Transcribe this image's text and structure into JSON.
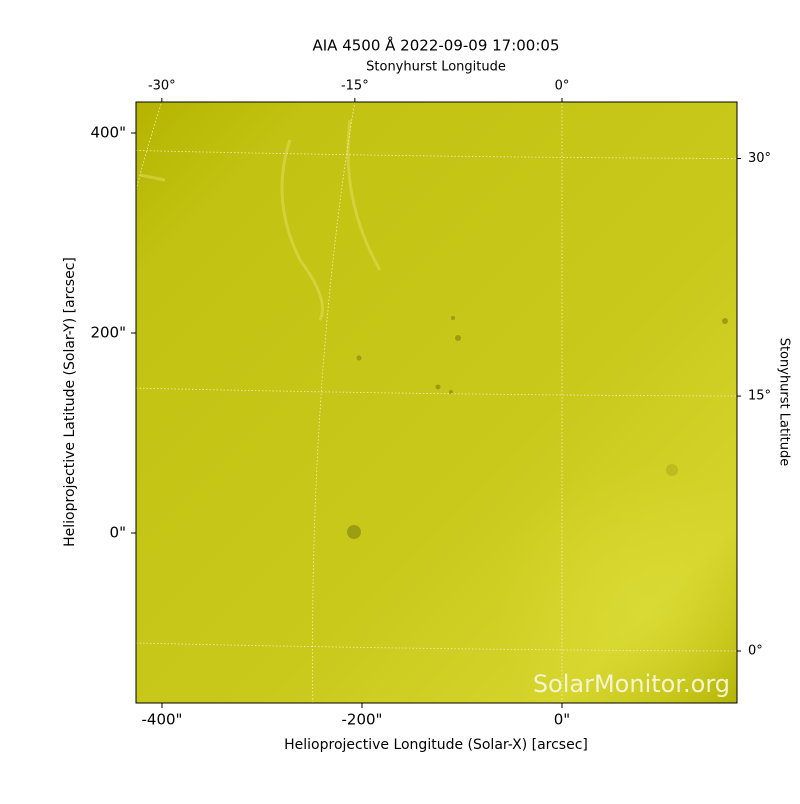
{
  "chart_data": {
    "type": "image",
    "title": "AIA 4500 Å 2022-09-09 17:00:05",
    "xlabel": "Helioprojective Longitude (Solar-X) [arcsec]",
    "ylabel": "Helioprojective Latitude (Solar-Y) [arcsec]",
    "top_label": "Stonyhurst Longitude",
    "right_label": "Stonyhurst Latitude",
    "xlim": [
      -426,
      175
    ],
    "ylim": [
      -170,
      431
    ],
    "xticks": [
      {
        "value": -400,
        "label": "-400\""
      },
      {
        "value": -200,
        "label": "-200\""
      },
      {
        "value": 0,
        "label": "0\""
      }
    ],
    "yticks": [
      {
        "value": 0,
        "label": "0\""
      },
      {
        "value": 200,
        "label": "200\""
      },
      {
        "value": 400,
        "label": "400\""
      }
    ],
    "lon_ticks": [
      {
        "value": -30,
        "label": "-30°"
      },
      {
        "value": -15,
        "label": "-15°"
      },
      {
        "value": 0,
        "label": "0°"
      }
    ],
    "lat_ticks": [
      {
        "value": 0,
        "label": "0°"
      },
      {
        "value": 15,
        "label": "15°"
      },
      {
        "value": 30,
        "label": "30°"
      }
    ],
    "watermark": "SolarMonitor.org",
    "grid": true,
    "color": "#c9c91c"
  }
}
